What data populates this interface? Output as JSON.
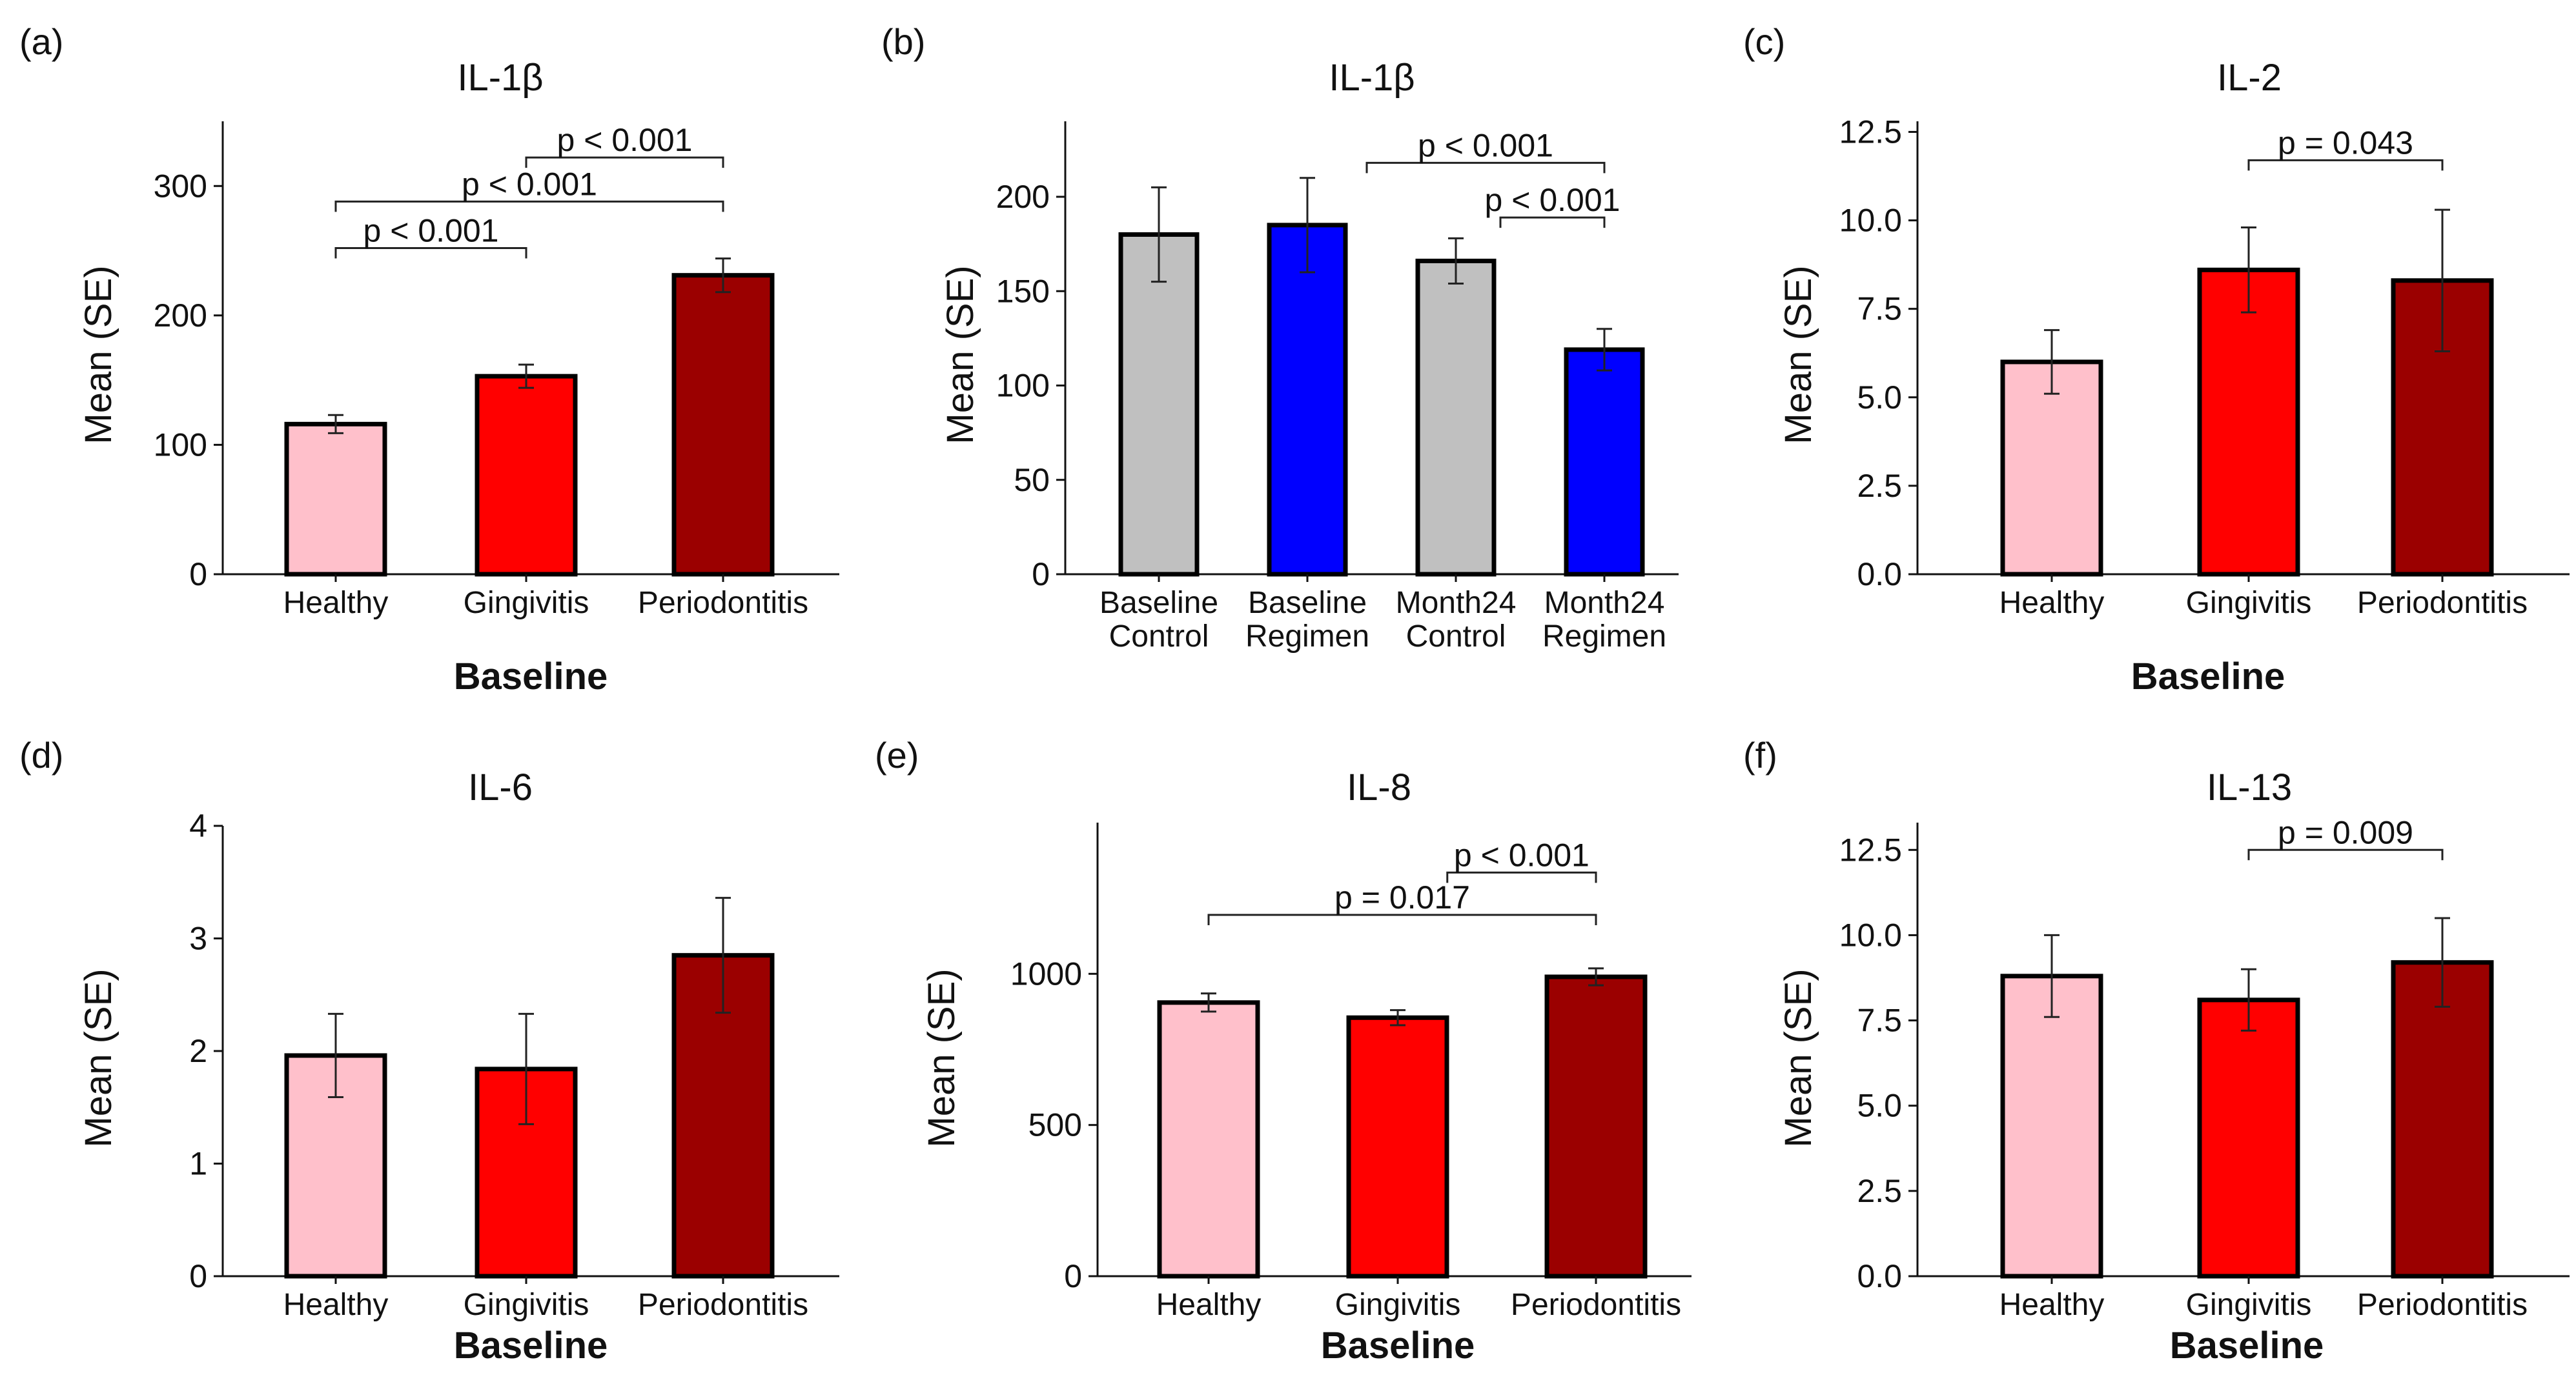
{
  "figure": {
    "x_title_common": "Baseline"
  },
  "chart_data": [
    {
      "id": "a",
      "panel_label": "(a)",
      "type": "bar",
      "title": "IL-1β",
      "ylabel": "Mean (SE)",
      "xlabel": "Baseline",
      "ylim": [
        0,
        350
      ],
      "yticks": [
        0,
        100,
        200,
        300
      ],
      "categories": [
        [
          "Healthy"
        ],
        [
          "Gingivitis"
        ],
        [
          "Periodontitis"
        ]
      ],
      "values": [
        116,
        153,
        231
      ],
      "errors": [
        7,
        9,
        13
      ],
      "colors": [
        "#ffc0cb",
        "#ff0000",
        "#9b0000"
      ],
      "significance": [
        {
          "from": 0,
          "to": 1,
          "label": "p < 0.001",
          "y": 252
        },
        {
          "from": 0,
          "to": 2,
          "label": "p < 0.001",
          "y": 288
        },
        {
          "from": 1,
          "to": 2,
          "label": "p < 0.001",
          "y": 322
        }
      ]
    },
    {
      "id": "b",
      "panel_label": "(b)",
      "type": "bar",
      "title": "IL-1β",
      "ylabel": "Mean (SE)",
      "xlabel": "",
      "ylim": [
        0,
        240
      ],
      "yticks": [
        0,
        50,
        100,
        150,
        200
      ],
      "categories": [
        [
          "Baseline",
          "Control"
        ],
        [
          "Baseline",
          "Regimen"
        ],
        [
          "Month24",
          "Control"
        ],
        [
          "Month24",
          "Regimen"
        ]
      ],
      "values": [
        180,
        185,
        166,
        119
      ],
      "errors": [
        25,
        25,
        12,
        11
      ],
      "colors": [
        "#c0c0c0",
        "#0000ff",
        "#c0c0c0",
        "#0000ff"
      ],
      "significance": [
        {
          "from": 2.3,
          "to": 3,
          "label": "p < 0.001",
          "y": 189
        },
        {
          "from": 1.4,
          "to": 3,
          "label": "p < 0.001",
          "y": 218
        }
      ]
    },
    {
      "id": "c",
      "panel_label": "(c)",
      "type": "bar",
      "title": "IL-2",
      "ylabel": "Mean (SE)",
      "xlabel": "Baseline",
      "ylim": [
        0,
        12.8
      ],
      "yticks": [
        0.0,
        2.5,
        5.0,
        7.5,
        10.0,
        12.5
      ],
      "ytick_decimals": 1,
      "categories": [
        [
          "Healthy"
        ],
        [
          "Gingivitis"
        ],
        [
          "Periodontitis"
        ]
      ],
      "values": [
        6.0,
        8.6,
        8.3
      ],
      "errors": [
        0.9,
        1.2,
        2.0
      ],
      "colors": [
        "#ffc0cb",
        "#ff0000",
        "#9b0000"
      ],
      "significance": [
        {
          "from": 1,
          "to": 2,
          "label": "p = 0.043",
          "y": 11.7
        }
      ]
    },
    {
      "id": "d",
      "panel_label": "(d)",
      "type": "bar",
      "title": "IL-6",
      "ylabel": "Mean (SE)",
      "xlabel": "Baseline",
      "ylim": [
        0,
        4
      ],
      "yticks": [
        0,
        1,
        2,
        3,
        4
      ],
      "categories": [
        [
          "Healthy"
        ],
        [
          "Gingivitis"
        ],
        [
          "Periodontitis"
        ]
      ],
      "values": [
        1.96,
        1.84,
        2.85
      ],
      "errors": [
        0.37,
        0.49,
        0.51
      ],
      "colors": [
        "#ffc0cb",
        "#ff0000",
        "#9b0000"
      ],
      "significance": []
    },
    {
      "id": "e",
      "panel_label": "(e)",
      "type": "bar",
      "title": "IL-8",
      "ylabel": "Mean (SE)",
      "xlabel": "Baseline",
      "ylim": [
        0,
        1500
      ],
      "yticks": [
        0,
        500,
        1000
      ],
      "categories": [
        [
          "Healthy"
        ],
        [
          "Gingivitis"
        ],
        [
          "Periodontitis"
        ]
      ],
      "values": [
        905,
        855,
        990
      ],
      "errors": [
        30,
        25,
        28
      ],
      "colors": [
        "#ffc0cb",
        "#ff0000",
        "#9b0000"
      ],
      "significance": [
        {
          "from": 0,
          "to": 2,
          "label": "p = 0.017",
          "y": 1195
        },
        {
          "from": 1.25,
          "to": 2,
          "label": "p < 0.001",
          "y": 1335
        }
      ]
    },
    {
      "id": "f",
      "panel_label": "(f)",
      "type": "bar",
      "title": "IL-13",
      "ylabel": "Mean (SE)",
      "xlabel": "Baseline",
      "ylim": [
        0,
        13.3
      ],
      "yticks": [
        0.0,
        2.5,
        5.0,
        7.5,
        10.0,
        12.5
      ],
      "ytick_decimals": 1,
      "categories": [
        [
          "Healthy"
        ],
        [
          "Gingivitis"
        ],
        [
          "Periodontitis"
        ]
      ],
      "values": [
        8.8,
        8.1,
        9.2
      ],
      "errors": [
        1.2,
        0.9,
        1.3
      ],
      "colors": [
        "#ffc0cb",
        "#ff0000",
        "#9b0000"
      ],
      "significance": [
        {
          "from": 1,
          "to": 2,
          "label": "p = 0.009",
          "y": 12.5
        }
      ]
    }
  ]
}
